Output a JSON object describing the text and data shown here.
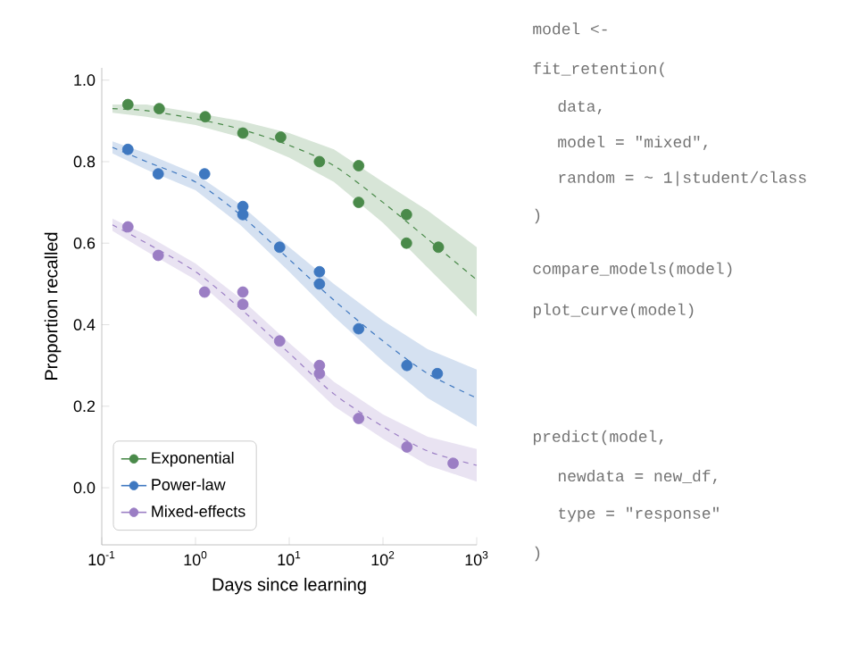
{
  "chart_data": {
    "type": "line",
    "xlabel": "Days since learning",
    "ylabel": "Proportion recalled",
    "xlim": [
      0.1,
      1000
    ],
    "ylim": [
      -0.14,
      1.03
    ],
    "log": "x",
    "xticks": [
      {
        "value": 0.1,
        "label": "10$^{-1}$"
      },
      {
        "value": 1,
        "label": "10$^{0}$"
      },
      {
        "value": 10,
        "label": "10$^{1}$"
      },
      {
        "value": 100,
        "label": "10$^{2}$"
      },
      {
        "value": 1000,
        "label": "10$^{3}$"
      }
    ],
    "yticks": [
      {
        "value": 0,
        "label": "0.0"
      },
      {
        "value": 0.2,
        "label": "0.2"
      },
      {
        "value": 0.4,
        "label": "0.4"
      },
      {
        "value": 0.6,
        "label": "0.6"
      },
      {
        "value": 0.8,
        "label": "0.8"
      },
      {
        "value": 1,
        "label": "1.0"
      }
    ],
    "legend": "bottom left",
    "marker": "circle",
    "line_style": "dashed",
    "series": [
      {
        "color": "#4a8a4a",
        "marker": "none",
        "x": [
          0.13,
          0.3,
          1,
          3,
          10,
          30,
          100,
          300,
          1000
        ],
        "values": [
          0.93,
          0.925,
          0.905,
          0.88,
          0.84,
          0.79,
          0.7,
          0.61,
          0.51
        ],
        "lower": [
          0.92,
          0.91,
          0.89,
          0.86,
          0.81,
          0.75,
          0.65,
          0.54,
          0.42
        ],
        "upper": [
          0.94,
          0.94,
          0.92,
          0.9,
          0.87,
          0.83,
          0.75,
          0.68,
          0.59
        ]
      },
      {
        "color": "#3f78c0",
        "marker": "none",
        "x": [
          0.13,
          0.3,
          1,
          3,
          10,
          30,
          100,
          300,
          1000
        ],
        "values": [
          0.835,
          0.8,
          0.75,
          0.67,
          0.56,
          0.46,
          0.36,
          0.28,
          0.22
        ],
        "lower": [
          0.82,
          0.78,
          0.73,
          0.645,
          0.53,
          0.42,
          0.31,
          0.22,
          0.15
        ],
        "upper": [
          0.85,
          0.82,
          0.77,
          0.695,
          0.59,
          0.5,
          0.41,
          0.34,
          0.29
        ]
      },
      {
        "color": "#9b7ec4",
        "marker": "none",
        "x": [
          0.13,
          0.3,
          1,
          3,
          10,
          30,
          100,
          300,
          1000
        ],
        "values": [
          0.645,
          0.6,
          0.53,
          0.44,
          0.33,
          0.23,
          0.15,
          0.09,
          0.055
        ],
        "lower": [
          0.63,
          0.58,
          0.51,
          0.415,
          0.305,
          0.2,
          0.12,
          0.055,
          0.015
        ],
        "upper": [
          0.66,
          0.62,
          0.55,
          0.465,
          0.355,
          0.26,
          0.18,
          0.125,
          0.095
        ]
      },
      {
        "name": "Exponential",
        "type": "scatter",
        "color": "#4a8a4a",
        "x": [
          0.19,
          0.41,
          1.27,
          3.2,
          8.1,
          21,
          55,
          55,
          178,
          178,
          390
        ],
        "values": [
          0.94,
          0.93,
          0.91,
          0.87,
          0.86,
          0.8,
          0.79,
          0.7,
          0.67,
          0.6,
          0.59
        ]
      },
      {
        "name": "Power-law",
        "type": "scatter",
        "color": "#3f78c0",
        "x": [
          0.19,
          0.4,
          1.25,
          3.2,
          3.2,
          7.9,
          21,
          21,
          55,
          180,
          380
        ],
        "values": [
          0.83,
          0.77,
          0.77,
          0.69,
          0.67,
          0.59,
          0.53,
          0.5,
          0.39,
          0.3,
          0.28
        ]
      },
      {
        "name": "Mixed-effects",
        "type": "scatter",
        "color": "#9b7ec4",
        "x": [
          0.19,
          0.4,
          1.25,
          3.2,
          3.2,
          7.9,
          21,
          21,
          55,
          180,
          560
        ],
        "values": [
          0.64,
          0.57,
          0.48,
          0.48,
          0.45,
          0.36,
          0.3,
          0.28,
          0.17,
          0.1,
          0.06
        ]
      }
    ],
    "annotations": [
      "model <-",
      "fit_retention(",
      "data,",
      "model = \"mixed\",",
      "random = ~ 1|student/class",
      ")",
      "compare_models(model)",
      "plot_curve(model)",
      "predict(model,",
      "newdata = new_df,",
      "type = \"response\"",
      ")"
    ]
  }
}
